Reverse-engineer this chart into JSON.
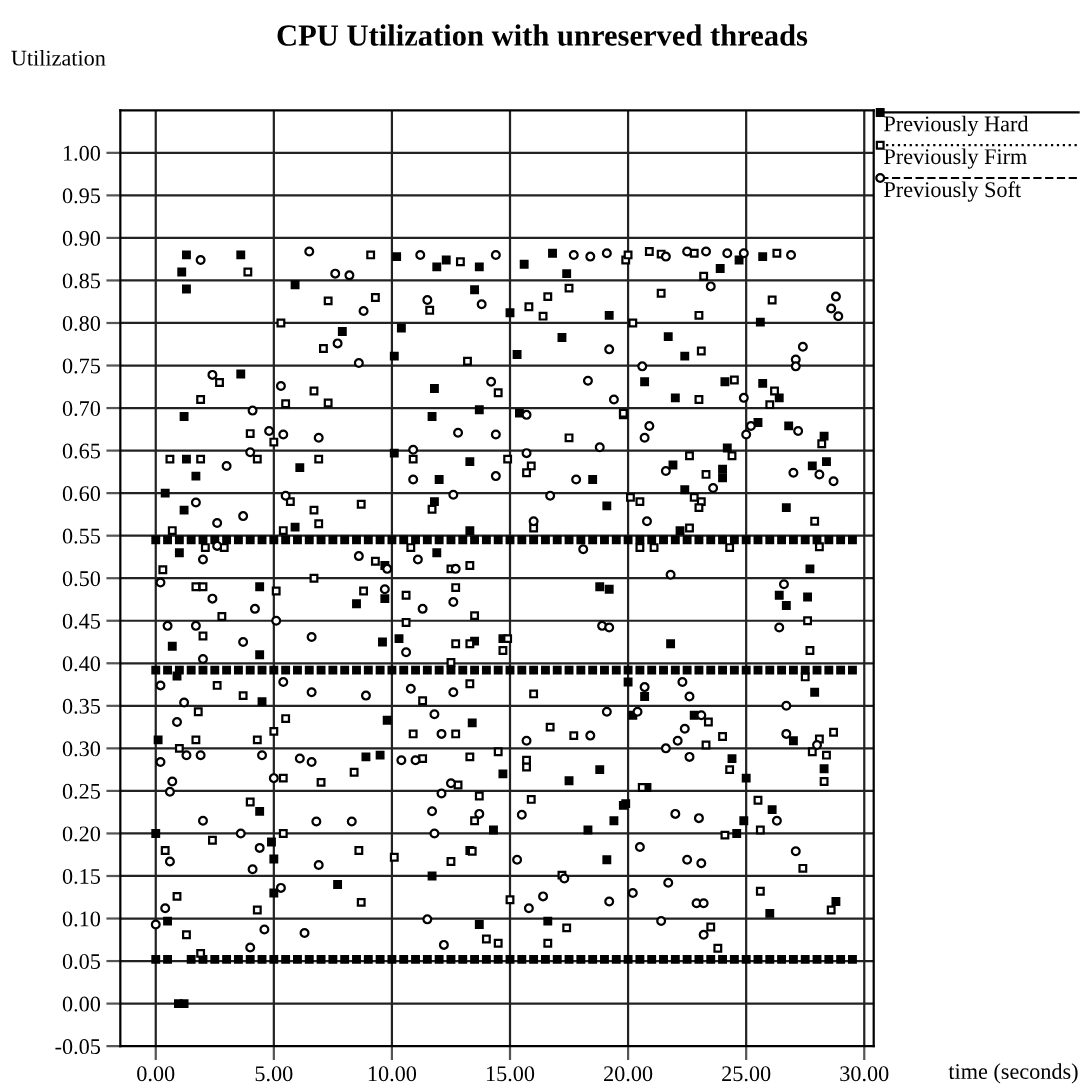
{
  "chart_data": {
    "type": "scatter",
    "title": "CPU Utilization with unreserved threads",
    "xlabel": "time (seconds)",
    "ylabel": "Utilization",
    "xlim": [
      -1.5,
      30.4
    ],
    "ylim": [
      -0.05,
      1.05
    ],
    "xticks": [
      {
        "value": 0,
        "label": "0.00"
      },
      {
        "value": 5,
        "label": "5.00"
      },
      {
        "value": 10,
        "label": "10.00"
      },
      {
        "value": 15,
        "label": "15.00"
      },
      {
        "value": 20,
        "label": "20.00"
      },
      {
        "value": 25,
        "label": "25.00"
      },
      {
        "value": 30,
        "label": "30.00"
      }
    ],
    "yticks": [
      {
        "value": -0.05,
        "label": "-0.05"
      },
      {
        "value": 0,
        "label": "0.00"
      },
      {
        "value": 0.05,
        "label": "0.05"
      },
      {
        "value": 0.1,
        "label": "0.10"
      },
      {
        "value": 0.15,
        "label": "0.15"
      },
      {
        "value": 0.2,
        "label": "0.20"
      },
      {
        "value": 0.25,
        "label": "0.25"
      },
      {
        "value": 0.3,
        "label": "0.30"
      },
      {
        "value": 0.35,
        "label": "0.35"
      },
      {
        "value": 0.4,
        "label": "0.40"
      },
      {
        "value": 0.45,
        "label": "0.45"
      },
      {
        "value": 0.5,
        "label": "0.50"
      },
      {
        "value": 0.55,
        "label": "0.55"
      },
      {
        "value": 0.6,
        "label": "0.60"
      },
      {
        "value": 0.65,
        "label": "0.65"
      },
      {
        "value": 0.7,
        "label": "0.70"
      },
      {
        "value": 0.75,
        "label": "0.75"
      },
      {
        "value": 0.8,
        "label": "0.80"
      },
      {
        "value": 0.85,
        "label": "0.85"
      },
      {
        "value": 0.9,
        "label": "0.90"
      },
      {
        "value": 0.95,
        "label": "0.95"
      },
      {
        "value": 1.0,
        "label": "1.00"
      }
    ],
    "grid": true,
    "legend": "top right",
    "series": [
      {
        "name": "Previously Hard",
        "color": "#000000",
        "marker": "square",
        "line_style": "solid",
        "x": [
          0,
          0.5,
          1.5,
          2,
          2.5,
          3,
          3.5,
          4,
          4.5,
          5,
          5.5,
          6,
          6.5,
          7,
          7.5,
          8,
          8.5,
          9,
          9.5,
          10,
          10.5,
          11,
          11.5,
          12,
          12.5,
          13,
          13.5,
          14,
          14.5,
          15,
          15.5,
          16,
          16.5,
          17,
          17.5,
          18,
          18.5,
          19,
          19.5,
          20,
          20.5,
          21,
          21.5,
          22,
          22.5,
          23,
          23.5,
          24,
          24.5,
          25,
          25.5,
          26,
          26.5,
          27,
          27.5,
          28,
          28.5,
          29,
          29.5,
          0,
          0.5,
          1,
          1.5,
          2,
          2.5,
          3,
          3.5,
          4,
          4.5,
          5,
          5.5,
          6,
          6.5,
          7,
          7.5,
          8,
          8.5,
          9,
          9.5,
          10,
          10.5,
          11,
          11.5,
          12,
          12.5,
          13,
          13.5,
          14,
          14.5,
          15,
          15.5,
          16,
          16.5,
          17,
          17.5,
          18,
          18.5,
          19,
          19.5,
          20,
          20.5,
          21,
          21.5,
          22,
          22.5,
          23,
          23.5,
          24,
          24.5,
          25,
          25.5,
          26,
          26.5,
          27,
          27.5,
          28,
          28.5,
          29,
          29.5,
          0,
          0.5,
          1,
          1.5,
          2,
          2.5,
          3,
          3.5,
          4,
          4.5,
          5,
          5.5,
          6,
          6.5,
          7,
          7.5,
          8,
          8.5,
          9,
          9.5,
          10,
          10.5,
          11,
          11.5,
          12,
          12.5,
          13,
          13.5,
          14,
          14.5,
          15,
          15.5,
          16,
          16.5,
          17,
          17.5,
          18,
          18.5,
          19,
          19.5,
          20,
          20.5,
          21,
          21.5,
          22,
          22.5,
          23,
          23.5,
          24,
          24.5,
          25,
          25.5,
          26,
          26.5,
          27,
          27.5,
          28,
          28.5,
          29,
          29.5,
          1.3,
          1.1,
          3.6,
          5.9,
          1.3,
          7.9,
          3.6,
          1.2,
          1.3,
          1.7,
          6.1,
          0.4,
          1.2,
          5.9,
          1.0,
          4.4,
          8.5,
          0.7,
          4.4,
          0.9,
          4.5,
          0.1,
          8.9,
          4.4,
          0.0,
          4.9,
          5.0,
          7.7,
          5.0,
          0.5,
          0.96,
          1.2,
          10.2,
          11.9,
          12.3,
          13.7,
          15.6,
          16.8,
          17.4,
          13.5,
          15.0,
          19.2,
          10.4,
          17.2,
          10.1,
          15.3,
          11.8,
          13.7,
          11.7,
          15.4,
          10.1,
          13.3,
          12.0,
          18.5,
          11.8,
          19.1,
          13.3,
          11.9,
          9.7,
          9.7,
          18.8,
          19.2,
          9.6,
          10.3,
          13.5,
          14.7,
          9.8,
          13.4,
          9.5,
          14.7,
          17.5,
          18.8,
          14.3,
          18.3,
          19.4,
          11.7,
          13.3,
          19.1,
          19.8,
          16.6,
          13.7,
          23.9,
          24.7,
          25.7,
          25.6,
          21.7,
          22.4,
          20.7,
          24.1,
          25.7,
          22.0,
          26.4,
          25.5,
          26.8,
          28.3,
          24.2,
          21.9,
          24.0,
          24.0,
          27.8,
          28.4,
          22.4,
          26.7,
          22.2,
          27.7,
          26.4,
          27.6,
          26.7,
          21.8,
          20.0,
          20.7,
          20.2,
          27.9,
          22.8,
          27.0,
          24.4,
          28.3,
          25.0,
          26.1,
          24.9,
          24.6,
          20.8,
          19.9,
          28.8,
          26.0
        ],
        "values": [
          0.052,
          0.052,
          0.052,
          0.052,
          0.052,
          0.052,
          0.052,
          0.052,
          0.052,
          0.052,
          0.052,
          0.052,
          0.052,
          0.052,
          0.052,
          0.052,
          0.052,
          0.052,
          0.052,
          0.052,
          0.052,
          0.052,
          0.052,
          0.052,
          0.052,
          0.052,
          0.052,
          0.052,
          0.052,
          0.052,
          0.052,
          0.052,
          0.052,
          0.052,
          0.052,
          0.052,
          0.052,
          0.052,
          0.052,
          0.052,
          0.052,
          0.052,
          0.052,
          0.052,
          0.052,
          0.052,
          0.052,
          0.052,
          0.052,
          0.052,
          0.052,
          0.052,
          0.052,
          0.052,
          0.052,
          0.052,
          0.052,
          0.052,
          0.052,
          0.392,
          0.392,
          0.392,
          0.392,
          0.392,
          0.392,
          0.392,
          0.392,
          0.392,
          0.392,
          0.392,
          0.392,
          0.392,
          0.392,
          0.392,
          0.392,
          0.392,
          0.392,
          0.392,
          0.392,
          0.392,
          0.392,
          0.392,
          0.392,
          0.392,
          0.392,
          0.392,
          0.392,
          0.392,
          0.392,
          0.392,
          0.392,
          0.392,
          0.392,
          0.392,
          0.392,
          0.392,
          0.392,
          0.392,
          0.392,
          0.392,
          0.392,
          0.392,
          0.392,
          0.392,
          0.392,
          0.392,
          0.392,
          0.392,
          0.392,
          0.392,
          0.392,
          0.392,
          0.392,
          0.392,
          0.392,
          0.392,
          0.392,
          0.392,
          0.392,
          0.545,
          0.545,
          0.545,
          0.545,
          0.545,
          0.545,
          0.545,
          0.545,
          0.545,
          0.545,
          0.545,
          0.545,
          0.545,
          0.545,
          0.545,
          0.545,
          0.545,
          0.545,
          0.545,
          0.545,
          0.545,
          0.545,
          0.545,
          0.545,
          0.545,
          0.545,
          0.545,
          0.545,
          0.545,
          0.545,
          0.545,
          0.545,
          0.545,
          0.545,
          0.545,
          0.545,
          0.545,
          0.545,
          0.545,
          0.545,
          0.545,
          0.545,
          0.545,
          0.545,
          0.545,
          0.545,
          0.545,
          0.545,
          0.545,
          0.545,
          0.545,
          0.545,
          0.545,
          0.545,
          0.545,
          0.545,
          0.545,
          0.545,
          0.545,
          0.545,
          0.88,
          0.86,
          0.88,
          0.845,
          0.84,
          0.79,
          0.74,
          0.69,
          0.64,
          0.62,
          0.63,
          0.6,
          0.58,
          0.56,
          0.53,
          0.49,
          0.47,
          0.42,
          0.41,
          0.385,
          0.355,
          0.31,
          0.29,
          0.226,
          0.2,
          0.19,
          0.17,
          0.14,
          0.13,
          0.097,
          0.0,
          0.0,
          0.878,
          0.866,
          0.874,
          0.866,
          0.869,
          0.882,
          0.858,
          0.839,
          0.812,
          0.809,
          0.794,
          0.783,
          0.761,
          0.763,
          0.723,
          0.698,
          0.69,
          0.694,
          0.647,
          0.637,
          0.616,
          0.616,
          0.59,
          0.585,
          0.556,
          0.53,
          0.515,
          0.476,
          0.49,
          0.487,
          0.425,
          0.429,
          0.426,
          0.429,
          0.333,
          0.33,
          0.292,
          0.27,
          0.262,
          0.275,
          0.204,
          0.204,
          0.215,
          0.15,
          0.18,
          0.169,
          0.233,
          0.097,
          0.093,
          0.864,
          0.874,
          0.878,
          0.801,
          0.784,
          0.761,
          0.731,
          0.731,
          0.729,
          0.712,
          0.712,
          0.683,
          0.679,
          0.667,
          0.653,
          0.633,
          0.628,
          0.618,
          0.632,
          0.637,
          0.604,
          0.583,
          0.556,
          0.511,
          0.48,
          0.478,
          0.468,
          0.423,
          0.378,
          0.361,
          0.339,
          0.366,
          0.339,
          0.309,
          0.288,
          0.276,
          0.265,
          0.228,
          0.215,
          0.2,
          0.254,
          0.235,
          0.12,
          0.106
        ]
      },
      {
        "name": "Previously Firm",
        "color": "#000000",
        "marker": "square",
        "line_style": "dotted",
        "x": [
          3.9,
          9.1,
          9.3,
          7.3,
          5.3,
          7.1,
          1.9,
          2.7,
          5.5,
          7.3,
          6.7,
          4.0,
          5.0,
          0.6,
          1.9,
          4.3,
          6.9,
          5.7,
          6.7,
          8.7,
          6.9,
          0.7,
          5.4,
          2.1,
          2.9,
          9.3,
          0.3,
          1.7,
          2.0,
          5.1,
          6.7,
          8.8,
          2.8,
          2.0,
          3.7,
          2.6,
          1.8,
          1.7,
          5.0,
          5.5,
          1.0,
          4.3,
          5.4,
          7.0,
          8.4,
          4.0,
          5.4,
          2.4,
          0.4,
          8.6,
          0.9,
          8.7,
          4.3,
          1.3,
          1.9,
          12.9,
          19.9,
          11.6,
          15.8,
          16.4,
          17.5,
          16.6,
          13.2,
          14.5,
          19.8,
          17.5,
          10.9,
          14.9,
          15.9,
          15.7,
          11.7,
          16.0,
          10.8,
          12.5,
          13.3,
          10.6,
          12.7,
          10.6,
          13.5,
          12.7,
          13.3,
          14.9,
          14.7,
          12.5,
          13.3,
          16.0,
          11.3,
          10.9,
          12.7,
          16.7,
          17.7,
          11.3,
          13.3,
          14.5,
          15.7,
          15.7,
          12.8,
          13.7,
          15.9,
          13.5,
          10.1,
          12.5,
          13.4,
          17.2,
          15.0,
          14.0,
          14.5,
          16.6,
          17.4,
          20.0,
          20.9,
          21.4,
          22.8,
          26.3,
          23.2,
          21.4,
          23.0,
          26.1,
          20.2,
          23.1,
          24.5,
          23.0,
          26.2,
          26.0,
          19.8,
          28.2,
          22.6,
          24.4,
          23.3,
          20.1,
          20.5,
          22.8,
          23.1,
          23.0,
          22.6,
          27.9,
          20.5,
          21.1,
          24.3,
          28.1,
          27.6,
          27.7,
          27.5,
          23.4,
          24.0,
          23.3,
          28.7,
          28.1,
          28.4,
          27.8,
          24.3,
          20.6,
          28.3,
          25.5,
          25.6,
          24.1,
          27.4,
          25.6,
          28.6,
          23.5,
          23.8
        ],
        "values": [
          0.86,
          0.88,
          0.83,
          0.826,
          0.8,
          0.77,
          0.71,
          0.73,
          0.705,
          0.706,
          0.72,
          0.67,
          0.66,
          0.64,
          0.64,
          0.64,
          0.64,
          0.59,
          0.58,
          0.587,
          0.564,
          0.556,
          0.556,
          0.536,
          0.536,
          0.52,
          0.51,
          0.49,
          0.49,
          0.485,
          0.5,
          0.485,
          0.455,
          0.432,
          0.362,
          0.374,
          0.343,
          0.31,
          0.32,
          0.335,
          0.3,
          0.31,
          0.265,
          0.26,
          0.272,
          0.237,
          0.2,
          0.192,
          0.18,
          0.18,
          0.126,
          0.119,
          0.11,
          0.081,
          0.059,
          0.872,
          0.874,
          0.815,
          0.819,
          0.808,
          0.841,
          0.831,
          0.755,
          0.718,
          0.692,
          0.665,
          0.64,
          0.64,
          0.632,
          0.624,
          0.581,
          0.559,
          0.536,
          0.511,
          0.515,
          0.48,
          0.489,
          0.448,
          0.456,
          0.423,
          0.423,
          0.429,
          0.415,
          0.401,
          0.376,
          0.364,
          0.356,
          0.317,
          0.317,
          0.325,
          0.315,
          0.288,
          0.29,
          0.296,
          0.286,
          0.278,
          0.257,
          0.244,
          0.24,
          0.215,
          0.172,
          0.167,
          0.179,
          0.151,
          0.122,
          0.076,
          0.071,
          0.071,
          0.089,
          0.88,
          0.884,
          0.881,
          0.882,
          0.882,
          0.855,
          0.835,
          0.809,
          0.827,
          0.8,
          0.767,
          0.733,
          0.71,
          0.72,
          0.704,
          0.694,
          0.658,
          0.644,
          0.644,
          0.622,
          0.595,
          0.59,
          0.595,
          0.59,
          0.583,
          0.559,
          0.567,
          0.536,
          0.536,
          0.536,
          0.537,
          0.45,
          0.415,
          0.384,
          0.331,
          0.314,
          0.304,
          0.319,
          0.311,
          0.292,
          0.296,
          0.275,
          0.254,
          0.261,
          0.239,
          0.204,
          0.198,
          0.159,
          0.132,
          0.11,
          0.09,
          0.065
        ]
      },
      {
        "name": "Previously Soft",
        "color": "#000000",
        "marker": "circle",
        "line_style": "dashed",
        "x": [
          1.9,
          6.5,
          7.6,
          8.2,
          8.8,
          7.7,
          8.6,
          2.4,
          5.3,
          4.1,
          4.8,
          5.4,
          6.9,
          3.0,
          4.0,
          1.7,
          2.6,
          3.7,
          5.5,
          2.0,
          2.6,
          8.6,
          0.2,
          2.4,
          4.2,
          0.5,
          1.7,
          5.1,
          6.6,
          2.0,
          3.7,
          0.2,
          1.2,
          5.4,
          6.6,
          8.9,
          0.9,
          1.3,
          1.9,
          0.2,
          0.7,
          6.1,
          6.6,
          0.6,
          4.5,
          5.0,
          8.3,
          6.8,
          2.0,
          3.6,
          4.4,
          0.6,
          4.1,
          6.9,
          0.4,
          5.3,
          4.6,
          6.3,
          4.0,
          0.0,
          11.2,
          14.4,
          17.7,
          18.4,
          19.1,
          13.8,
          11.5,
          19.2,
          14.2,
          18.3,
          19.4,
          12.8,
          14.4,
          18.8,
          15.7,
          10.9,
          15.7,
          10.9,
          14.4,
          17.8,
          16.7,
          12.6,
          16.0,
          18.1,
          11.1,
          9.8,
          12.7,
          9.7,
          11.3,
          12.6,
          18.9,
          19.2,
          10.6,
          10.8,
          12.6,
          11.8,
          12.1,
          19.1,
          18.4,
          15.7,
          10.4,
          11.0,
          12.5,
          12.1,
          11.7,
          13.7,
          15.5,
          11.8,
          15.3,
          17.3,
          15.8,
          16.4,
          19.2,
          11.5,
          12.2,
          21.6,
          22.5,
          23.3,
          24.2,
          24.9,
          26.9,
          23.5,
          28.8,
          28.6,
          28.9,
          27.4,
          27.1,
          27.1,
          20.6,
          24.9,
          20.9,
          20.7,
          25.2,
          25.0,
          27.2,
          21.6,
          27.0,
          28.7,
          28.1,
          23.6,
          20.8,
          21.8,
          26.6,
          26.4,
          20.7,
          22.3,
          22.6,
          20.4,
          23.1,
          22.4,
          22.1,
          21.6,
          22.6,
          26.7,
          26.7,
          28.0,
          22.0,
          23.0,
          26.3,
          20.5,
          22.5,
          23.1,
          27.1,
          20.2,
          21.7,
          22.9,
          23.2,
          21.4,
          23.2
        ],
        "values": [
          0.874,
          0.884,
          0.858,
          0.856,
          0.814,
          0.776,
          0.753,
          0.739,
          0.726,
          0.697,
          0.673,
          0.669,
          0.665,
          0.632,
          0.648,
          0.589,
          0.565,
          0.573,
          0.597,
          0.522,
          0.538,
          0.526,
          0.495,
          0.476,
          0.464,
          0.444,
          0.444,
          0.45,
          0.431,
          0.405,
          0.425,
          0.374,
          0.354,
          0.378,
          0.366,
          0.362,
          0.331,
          0.292,
          0.292,
          0.284,
          0.261,
          0.288,
          0.284,
          0.249,
          0.292,
          0.265,
          0.214,
          0.214,
          0.215,
          0.2,
          0.183,
          0.167,
          0.158,
          0.163,
          0.112,
          0.136,
          0.087,
          0.083,
          0.066,
          0.093,
          0.88,
          0.88,
          0.88,
          0.878,
          0.882,
          0.822,
          0.827,
          0.769,
          0.731,
          0.732,
          0.71,
          0.671,
          0.669,
          0.654,
          0.692,
          0.651,
          0.647,
          0.616,
          0.62,
          0.616,
          0.597,
          0.598,
          0.567,
          0.534,
          0.522,
          0.511,
          0.511,
          0.487,
          0.464,
          0.472,
          0.444,
          0.442,
          0.413,
          0.37,
          0.366,
          0.34,
          0.317,
          0.343,
          0.315,
          0.309,
          0.286,
          0.286,
          0.259,
          0.247,
          0.226,
          0.223,
          0.222,
          0.2,
          0.169,
          0.147,
          0.112,
          0.126,
          0.12,
          0.099,
          0.069,
          0.878,
          0.884,
          0.884,
          0.882,
          0.882,
          0.88,
          0.843,
          0.831,
          0.817,
          0.808,
          0.772,
          0.757,
          0.749,
          0.749,
          0.712,
          0.679,
          0.665,
          0.679,
          0.669,
          0.673,
          0.626,
          0.624,
          0.614,
          0.622,
          0.606,
          0.567,
          0.504,
          0.493,
          0.442,
          0.372,
          0.378,
          0.361,
          0.343,
          0.339,
          0.323,
          0.309,
          0.3,
          0.29,
          0.35,
          0.317,
          0.304,
          0.223,
          0.218,
          0.215,
          0.184,
          0.169,
          0.165,
          0.179,
          0.13,
          0.142,
          0.118,
          0.118,
          0.097,
          0.081
        ]
      }
    ]
  }
}
